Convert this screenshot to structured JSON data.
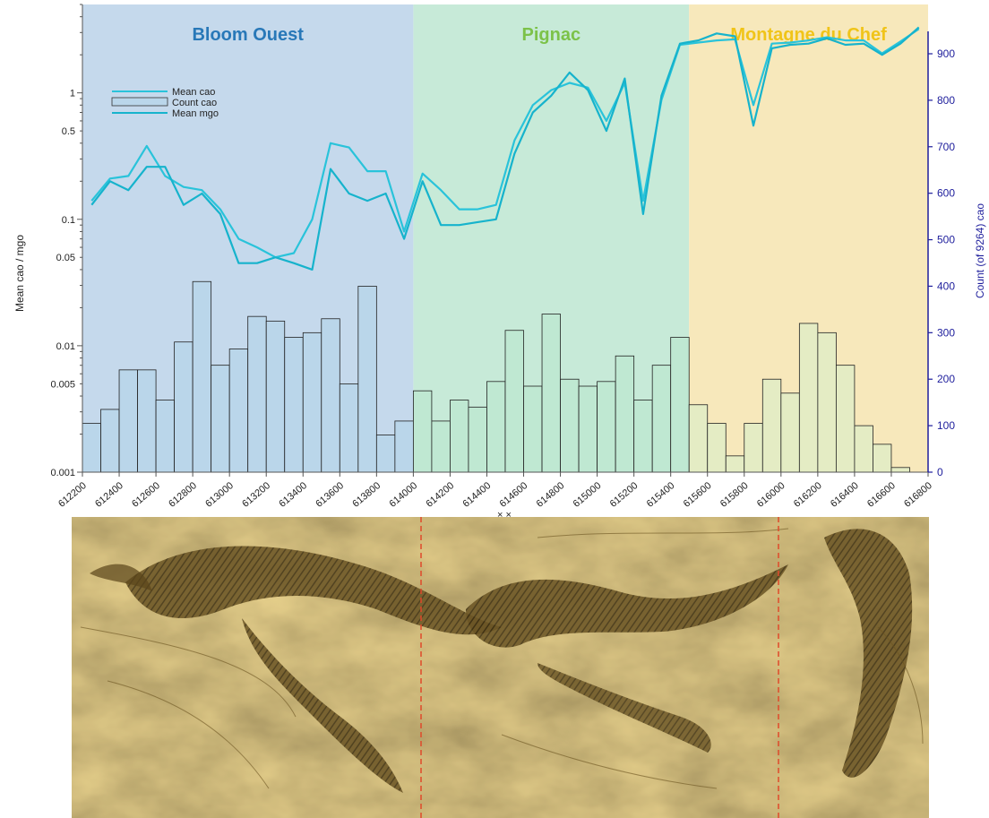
{
  "colors": {
    "region_blue": "#c5d9ec",
    "region_green": "#c7ead8",
    "region_yellow": "#f7e8bb",
    "bar_blue": "#bad6ea",
    "bar_green": "#bfe8d2",
    "bar_yellow": "#e4ecc4",
    "line_cao": "#29c3da",
    "line_mgo": "#16b3cc",
    "right_axis": "#1e1e9c",
    "title_blue": "#2878b8",
    "title_green": "#7cc249",
    "title_yellow": "#f0c419",
    "map_base": "#a88a44",
    "map_red_line": "#e0492a"
  },
  "map_icon": "terrain-map-image",
  "chart_data": {
    "type": "bar",
    "title": "",
    "xlabel": "",
    "ylabel": "Mean cao / mgo",
    "ylabel_right": "Count (of 9264) cao",
    "yscale_left": "log",
    "xlim": [
      612200,
      616800
    ],
    "ylim_left": [
      0.001,
      5
    ],
    "ylim_right": [
      0,
      900
    ],
    "grid": false,
    "legend_position": "top-left",
    "legend": [
      "Mean cao",
      "Count cao",
      "Mean mgo"
    ],
    "x_tick_labels": [
      "612200",
      "612400",
      "612600",
      "612800",
      "613000",
      "613200",
      "613400",
      "613600",
      "613800",
      "614000",
      "614200",
      "614400",
      "614600",
      "614800",
      "615000",
      "615200",
      "615400",
      "615600",
      "615800",
      "616000",
      "616200",
      "616400",
      "616600",
      "616800"
    ],
    "y_left_tick_labels": [
      "0.001",
      "0.005",
      "0.01",
      "0.05",
      "0.1",
      "0.5",
      "1"
    ],
    "y_right_tick_labels": [
      "0",
      "100",
      "200",
      "300",
      "400",
      "500",
      "600",
      "700",
      "800",
      "900"
    ],
    "regions": [
      {
        "name": "Bloom Ouest",
        "x_start": 612200,
        "x_end": 614000
      },
      {
        "name": "Pignac",
        "x_start": 614000,
        "x_end": 615500
      },
      {
        "name": "Montagne du Chef",
        "x_start": 615500,
        "x_end": 616800
      }
    ],
    "bin_width": 100,
    "bin_starts": [
      612200,
      612300,
      612400,
      612500,
      612600,
      612700,
      612800,
      612900,
      613000,
      613100,
      613200,
      613300,
      613400,
      613500,
      613600,
      613700,
      613800,
      613900,
      614000,
      614100,
      614200,
      614300,
      614400,
      614500,
      614600,
      614700,
      614800,
      614900,
      615000,
      615100,
      615200,
      615300,
      615400,
      615500,
      615600,
      615700,
      615800,
      615900,
      616000,
      616100,
      616200,
      616300,
      616400,
      616500,
      616600,
      616700
    ],
    "series": [
      {
        "name": "Count cao",
        "type": "bar",
        "axis": "right",
        "values": [
          105,
          135,
          220,
          220,
          155,
          280,
          410,
          230,
          265,
          335,
          325,
          290,
          300,
          330,
          190,
          400,
          80,
          110,
          175,
          110,
          155,
          140,
          195,
          305,
          185,
          340,
          200,
          185,
          195,
          250,
          155,
          230,
          290,
          145,
          105,
          35,
          105,
          200,
          170,
          320,
          300,
          230,
          100,
          60,
          10,
          0
        ]
      },
      {
        "name": "Mean cao",
        "type": "line",
        "axis": "left",
        "x": [
          612200,
          612300,
          612400,
          612500,
          612600,
          612700,
          612800,
          612900,
          613000,
          613100,
          613200,
          613300,
          613400,
          613500,
          613600,
          613700,
          613800,
          613900,
          614000,
          614100,
          614200,
          614300,
          614400,
          614500,
          614600,
          614700,
          614800,
          614900,
          615000,
          615100,
          615200,
          615300,
          615400,
          615500,
          615600,
          615700,
          615800,
          615900,
          616000,
          616100,
          616200,
          616300,
          616400,
          616500,
          616600,
          616700
        ],
        "values": [
          0.14,
          0.21,
          0.22,
          0.38,
          0.22,
          0.18,
          0.17,
          0.12,
          0.07,
          0.06,
          0.05,
          0.054,
          0.1,
          0.4,
          0.37,
          0.24,
          0.24,
          0.08,
          0.23,
          0.17,
          0.12,
          0.12,
          0.13,
          0.42,
          0.8,
          1.05,
          1.2,
          1.1,
          0.6,
          1.2,
          0.14,
          0.88,
          2.4,
          2.5,
          2.6,
          2.65,
          0.8,
          2.45,
          2.5,
          2.6,
          2.75,
          2.6,
          2.6,
          2.05,
          2.55,
          3.2
        ]
      },
      {
        "name": "Mean mgo",
        "type": "line",
        "axis": "left",
        "x": [
          612200,
          612300,
          612400,
          612500,
          612600,
          612700,
          612800,
          612900,
          613000,
          613100,
          613200,
          613300,
          613400,
          613500,
          613600,
          613700,
          613800,
          613900,
          614000,
          614100,
          614200,
          614300,
          614400,
          614500,
          614600,
          614700,
          614800,
          614900,
          615000,
          615100,
          615200,
          615300,
          615400,
          615500,
          615600,
          615700,
          615800,
          615900,
          616000,
          616100,
          616200,
          616300,
          616400,
          616500,
          616600,
          616700
        ],
        "values": [
          0.13,
          0.2,
          0.17,
          0.26,
          0.26,
          0.13,
          0.16,
          0.11,
          0.045,
          0.045,
          0.05,
          0.045,
          0.04,
          0.25,
          0.16,
          0.14,
          0.16,
          0.07,
          0.2,
          0.09,
          0.09,
          0.095,
          0.1,
          0.33,
          0.7,
          0.95,
          1.45,
          1.05,
          0.5,
          1.3,
          0.11,
          0.95,
          2.45,
          2.6,
          2.95,
          2.8,
          0.55,
          2.25,
          2.4,
          2.45,
          2.7,
          2.4,
          2.45,
          2.0,
          2.45,
          3.3
        ]
      }
    ]
  }
}
